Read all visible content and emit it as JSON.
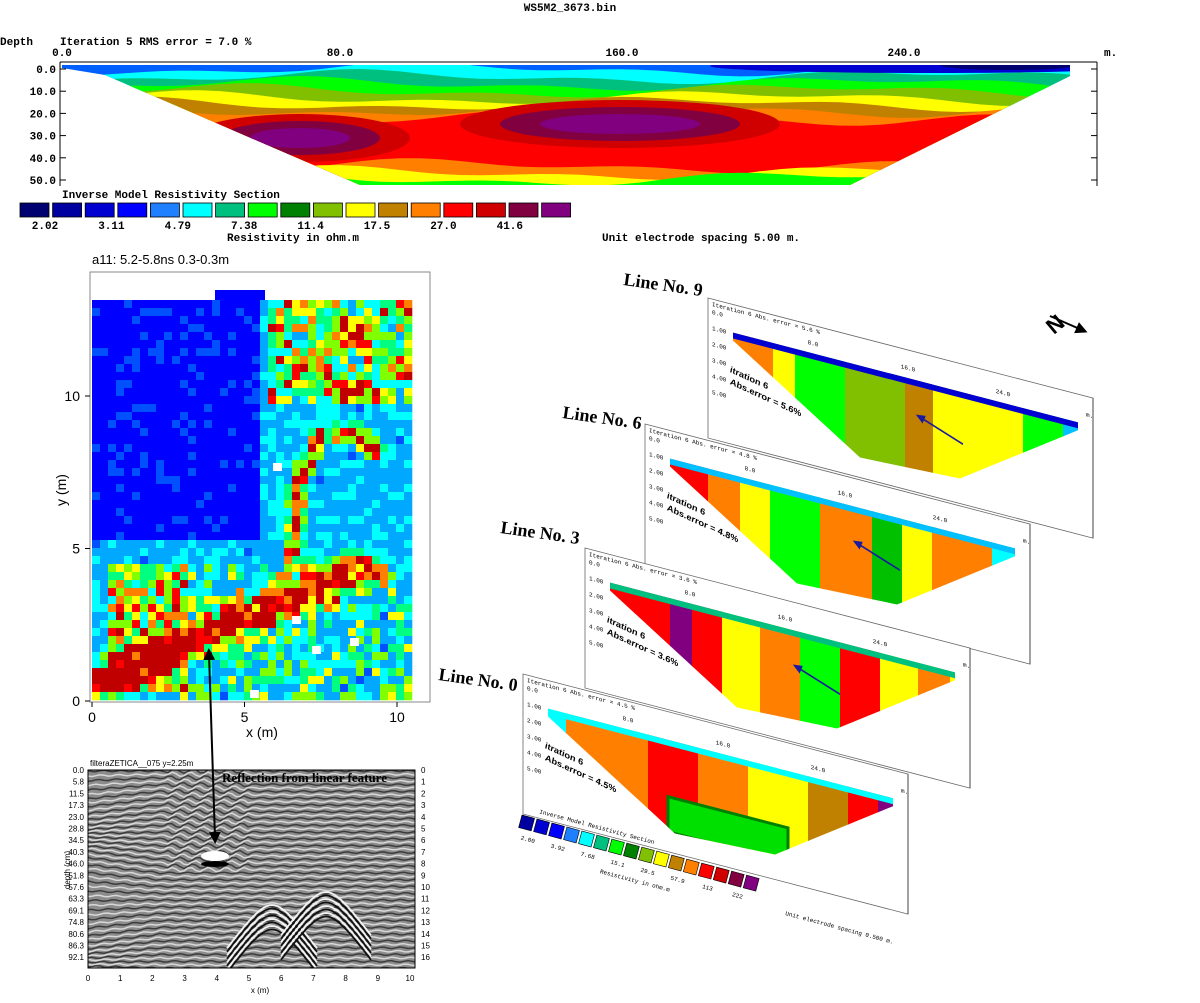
{
  "header_section": {
    "title": "WS5M2_3673.bin",
    "depth_label": "Depth",
    "iteration": "Iteration 5 RMS error = 7.0 %",
    "x_ticks": [
      "0.0",
      "80.0",
      "160.0",
      "240.0"
    ],
    "x_unit": "m.",
    "depth_ticks": [
      "0.0",
      "10.0",
      "20.0",
      "30.0",
      "40.0",
      "50.0"
    ],
    "section_title": "Inverse Model Resistivity Section",
    "legend_colors": [
      "#000070",
      "#0000a0",
      "#0000d0",
      "#0000ff",
      "#1e7fff",
      "#00ffff",
      "#00c080",
      "#00ff00",
      "#008000",
      "#80c000",
      "#ffff00",
      "#c08000",
      "#ff8000",
      "#ff0000",
      "#d00000",
      "#800040",
      "#800080"
    ],
    "legend_labels": [
      "2.02",
      "3.11",
      "4.79",
      "7.38",
      "11.4",
      "17.5",
      "27.0",
      "41.6"
    ],
    "legend_unit": "Resistivity in ohm.m",
    "spacing": "Unit electrode spacing 5.00 m."
  },
  "gpr_slice": {
    "title": "a11:  5.2-5.8ns  0.3-0.3m",
    "x_label": "x (m)",
    "y_label": "y (m)",
    "x_ticks": [
      "0",
      "5",
      "10"
    ],
    "y_ticks": [
      "0",
      "5",
      "10"
    ]
  },
  "radargram": {
    "header": "filteraZETICA__075  y=2.25m",
    "annotation": "Reflection from linear feature",
    "y_label": "depth (cm)",
    "x_label": "x (m)",
    "depth_ticks": [
      "0.0",
      "5.8",
      "11.5",
      "17.3",
      "23.0",
      "28.8",
      "34.5",
      "40.3",
      "46.0",
      "51.8",
      "57.6",
      "63.3",
      "69.1",
      "74.8",
      "80.6",
      "86.3",
      "92.1"
    ],
    "right_ticks": [
      "0",
      "1",
      "2",
      "3",
      "4",
      "5",
      "6",
      "7",
      "8",
      "9",
      "10",
      "11",
      "12",
      "13",
      "14",
      "15",
      "16"
    ],
    "x_ticks": [
      "0",
      "1",
      "2",
      "3",
      "4",
      "5",
      "6",
      "7",
      "8",
      "9",
      "10"
    ]
  },
  "pseudo_sections": {
    "lines": [
      {
        "name": "Line No. 9",
        "header": "Iteration 6 Abs. error = 5.6 %",
        "note": [
          "itration 6",
          "Abs.error = 5.6%"
        ]
      },
      {
        "name": "Line No. 6",
        "header": "Iteration 6 Abs. error = 4.8 %",
        "note": [
          "itration 6",
          "Abs.error = 4.8%"
        ]
      },
      {
        "name": "Line No. 3",
        "header": "Iteration 6 Abs. error = 3.6 %",
        "note": [
          "itration 6",
          "Abs.error = 3.6%"
        ]
      },
      {
        "name": "Line No. 0",
        "header": "Iteration 6 Abs. error = 4.5 %",
        "note": [
          "itration 6",
          "Abs.error = 4.5%"
        ]
      }
    ],
    "x_ticks": [
      "8.0",
      "16.0",
      "24.0"
    ],
    "x_unit": "m.",
    "depth_ticks": [
      "0.0",
      "1.00",
      "2.00",
      "3.00",
      "4.00",
      "5.00"
    ],
    "legend_title": "Inverse Model Resistivity Section",
    "legend_labels": [
      "2.00",
      "3.92",
      "7.68",
      "15.1",
      "29.5",
      "57.9",
      "113",
      "222"
    ],
    "legend_unit": "Resistivity in ohm.m",
    "spacing": "Unit electrode spacing 0.500 m.",
    "north": "N"
  }
}
